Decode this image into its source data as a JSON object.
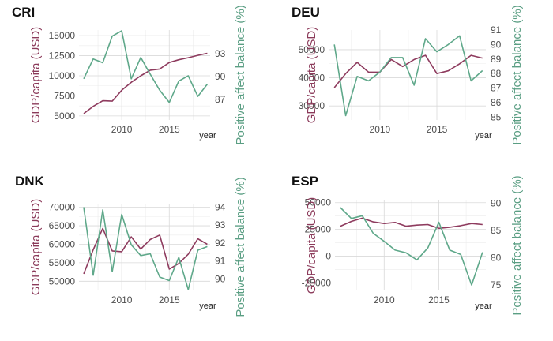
{
  "colors": {
    "gdp": "#8e3b5e",
    "pab": "#5fa88a",
    "grid": "#d9d9d9"
  },
  "chart_data": [
    {
      "type": "line",
      "title": "CRI",
      "xlabel": "year",
      "ylabel_left": "GDP/capita (USD)",
      "ylabel_right": "Positive affect balance (%)",
      "xlim": [
        2005.5,
        2019.3
      ],
      "xticks": [
        2010,
        2015
      ],
      "ylim_left": [
        4500,
        15700
      ],
      "yticks_left": [
        5000,
        7500,
        10000,
        12500,
        15000
      ],
      "yticks_left_labels": [
        "5000",
        "7500",
        "10000",
        "12500",
        "15000"
      ],
      "ylim_right": [
        84.3,
        96.1
      ],
      "yticks_right": [
        87,
        90,
        93
      ],
      "series": [
        {
          "name": "GDP/capita (USD)",
          "axis": "left",
          "x": [
            2006,
            2007,
            2008,
            2009,
            2010,
            2011,
            2012,
            2013,
            2014,
            2015,
            2016,
            2017,
            2018,
            2019
          ],
          "values": [
            5300,
            6200,
            6900,
            6850,
            8200,
            9200,
            10000,
            10700,
            10850,
            11650,
            12000,
            12250,
            12550,
            12800
          ]
        },
        {
          "name": "Positive affect balance (%)",
          "axis": "right",
          "x": [
            2006,
            2007,
            2008,
            2009,
            2010,
            2011,
            2012,
            2013,
            2014,
            2015,
            2016,
            2017,
            2018,
            2019
          ],
          "values": [
            89.7,
            92.3,
            91.8,
            95.3,
            96.0,
            89.7,
            92.5,
            90.3,
            88.2,
            86.6,
            89.4,
            90.1,
            87.4,
            89.0
          ]
        }
      ]
    },
    {
      "type": "line",
      "title": "DEU",
      "xlabel": "year",
      "ylabel_left": "GDP/capita (USD)",
      "ylabel_right": "Positive affect balance (%)",
      "xlim": [
        2005.5,
        2019.3
      ],
      "xticks": [
        2010,
        2015
      ],
      "ylim_left": [
        25000,
        57000
      ],
      "yticks_left": [
        30000,
        40000,
        50000
      ],
      "yticks_left_labels": [
        "30000",
        "40000",
        "50000"
      ],
      "ylim_right": [
        84.8,
        91.0
      ],
      "yticks_right": [
        85,
        86,
        87,
        88,
        89,
        90,
        91
      ],
      "series": [
        {
          "name": "GDP/capita (USD)",
          "axis": "left",
          "x": [
            2006,
            2007,
            2008,
            2009,
            2010,
            2011,
            2012,
            2013,
            2014,
            2015,
            2016,
            2017,
            2018,
            2019
          ],
          "values": [
            36500,
            41500,
            45500,
            42000,
            42000,
            46500,
            44000,
            46500,
            48000,
            41500,
            42500,
            45000,
            48000,
            47000
          ]
        },
        {
          "name": "Positive affect balance (%)",
          "axis": "right",
          "x": [
            2006,
            2007,
            2008,
            2009,
            2010,
            2011,
            2012,
            2013,
            2014,
            2015,
            2016,
            2017,
            2018,
            2019
          ],
          "values": [
            90.0,
            85.1,
            87.8,
            87.5,
            88.1,
            89.1,
            89.1,
            87.2,
            90.4,
            89.5,
            90.0,
            90.6,
            87.5,
            88.2
          ]
        }
      ]
    },
    {
      "type": "line",
      "title": "DNK",
      "xlabel": "year",
      "ylabel_left": "GDP/capita (USD)",
      "ylabel_right": "Positive affect balance (%)",
      "xlim": [
        2005.5,
        2019.3
      ],
      "xticks": [
        2010,
        2015
      ],
      "ylim_left": [
        47500,
        71000
      ],
      "yticks_left": [
        50000,
        55000,
        60000,
        65000,
        70000
      ],
      "yticks_left_labels": [
        "50000",
        "55000",
        "60000",
        "65000",
        "70000"
      ],
      "ylim_right": [
        89.35,
        94.2
      ],
      "yticks_right": [
        90,
        91,
        92,
        93,
        94
      ],
      "series": [
        {
          "name": "GDP/capita (USD)",
          "axis": "left",
          "x": [
            2006,
            2007,
            2008,
            2009,
            2010,
            2011,
            2012,
            2013,
            2014,
            2015,
            2016,
            2017,
            2018,
            2019
          ],
          "values": [
            52000,
            58500,
            64300,
            58200,
            58000,
            62000,
            58700,
            61300,
            62500,
            53300,
            54800,
            57300,
            61500,
            60000
          ]
        },
        {
          "name": "Positive affect balance (%)",
          "axis": "right",
          "x": [
            2006,
            2007,
            2008,
            2009,
            2010,
            2011,
            2012,
            2013,
            2014,
            2015,
            2016,
            2017,
            2018,
            2019
          ],
          "values": [
            94.0,
            90.2,
            93.85,
            90.4,
            93.6,
            91.9,
            91.3,
            91.4,
            90.1,
            89.9,
            91.2,
            89.4,
            91.6,
            91.8
          ]
        }
      ]
    },
    {
      "type": "line",
      "title": "ESP",
      "xlabel": "year",
      "ylabel_left": "GDP/capita (USD)",
      "ylabel_right": "Positive affect balance (%)",
      "xlim": [
        2005.5,
        2019.3
      ],
      "xticks": [
        2010,
        2015
      ],
      "ylim_left": [
        -32000,
        52000
      ],
      "yticks_left": [
        -25000,
        0,
        25000,
        50000
      ],
      "yticks_left_labels": [
        "-25000",
        "0",
        "25000",
        "50000"
      ],
      "ylim_right": [
        74.0,
        90.5
      ],
      "yticks_right": [
        75,
        80,
        85,
        90
      ],
      "series": [
        {
          "name": "GDP/capita (USD)",
          "axis": "left",
          "x": [
            2006,
            2007,
            2008,
            2009,
            2010,
            2011,
            2012,
            2013,
            2014,
            2015,
            2016,
            2017,
            2018,
            2019
          ],
          "values": [
            28000,
            32500,
            35500,
            32000,
            30500,
            31500,
            28000,
            29000,
            29500,
            26000,
            27000,
            28500,
            30500,
            29500
          ]
        },
        {
          "name": "Positive affect balance (%)",
          "axis": "right",
          "x": [
            2006,
            2007,
            2008,
            2009,
            2010,
            2011,
            2012,
            2013,
            2014,
            2015,
            2016,
            2017,
            2018,
            2019
          ],
          "values": [
            89.2,
            87.2,
            87.7,
            84.5,
            83.0,
            81.4,
            80.9,
            79.6,
            81.8,
            86.5,
            81.4,
            80.6,
            75.0,
            81.0
          ]
        }
      ]
    }
  ]
}
